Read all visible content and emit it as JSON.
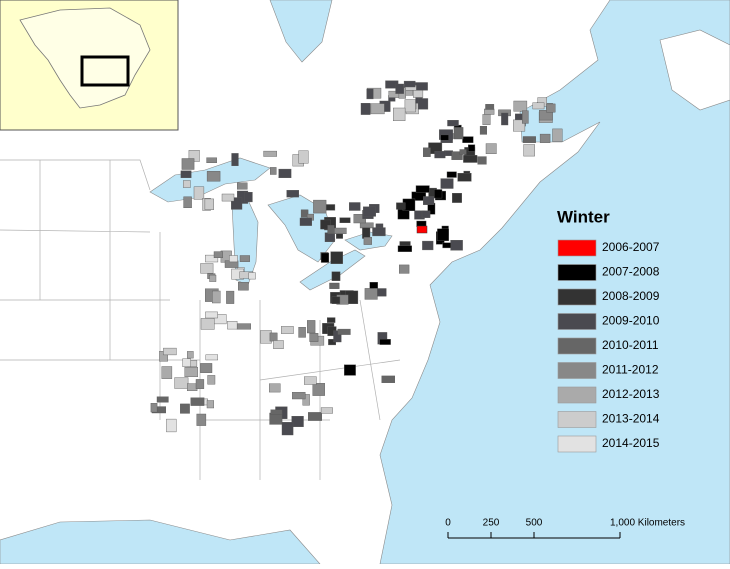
{
  "legend": {
    "title": "Winter",
    "items": [
      {
        "label": "2006-2007",
        "color": "#ff0000"
      },
      {
        "label": "2007-2008",
        "color": "#000000"
      },
      {
        "label": "2008-2009",
        "color": "#333333"
      },
      {
        "label": "2009-2010",
        "color": "#4a4a50"
      },
      {
        "label": "2010-2011",
        "color": "#666666"
      },
      {
        "label": "2011-2012",
        "color": "#888888"
      },
      {
        "label": "2012-2013",
        "color": "#aaaaaa"
      },
      {
        "label": "2013-2014",
        "color": "#cccccc"
      },
      {
        "label": "2014-2015",
        "color": "#e2e2e2"
      }
    ]
  },
  "scale_bar": {
    "labels": [
      "0",
      "250",
      "500",
      "1,000 Kilometers"
    ]
  }
}
